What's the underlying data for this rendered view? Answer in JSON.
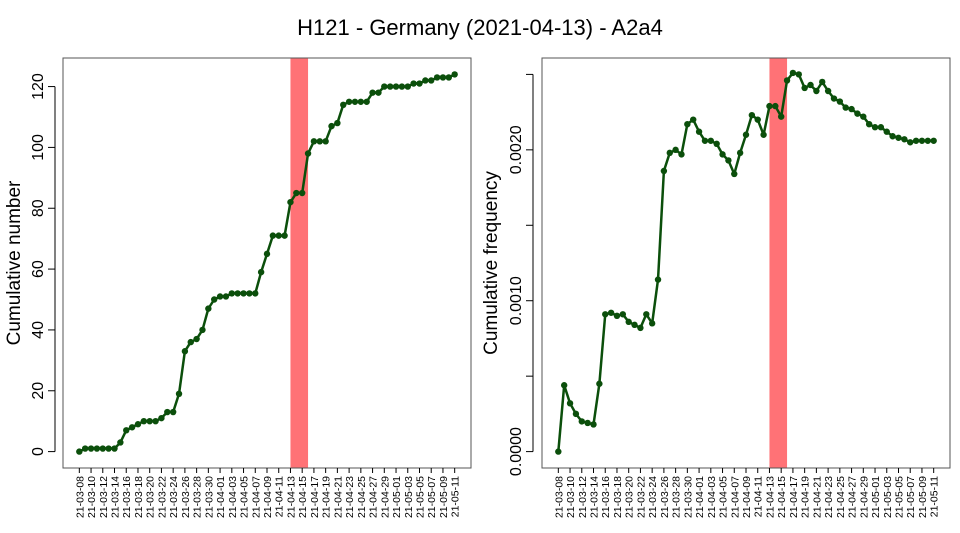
{
  "title": "H121 - Germany (2021-04-13) - A2a4",
  "colors": {
    "line": "#0b4f0b",
    "point": "#0b4f0b",
    "highlight": "#ff7276",
    "axis": "#000000"
  },
  "chart_data": [
    {
      "type": "line",
      "ylabel": "Cumulative number",
      "ylim": [
        0,
        124
      ],
      "yticks": [
        0,
        20,
        40,
        60,
        80,
        100,
        120
      ],
      "ytick_labels": [
        "0",
        "20",
        "40",
        "60",
        "80",
        "100",
        "120"
      ],
      "highlight": {
        "from": "21-04-13",
        "to": "21-04-16"
      },
      "x_tick_labels": [
        "21-03-08",
        "21-03-10",
        "21-03-12",
        "21-03-14",
        "21-03-16",
        "21-03-18",
        "21-03-20",
        "21-03-22",
        "21-03-24",
        "21-03-26",
        "21-03-28",
        "21-03-30",
        "21-04-01",
        "21-04-03",
        "21-04-05",
        "21-04-07",
        "21-04-09",
        "21-04-11",
        "21-04-13",
        "21-04-15",
        "21-04-17",
        "21-04-19",
        "21-04-21",
        "21-04-23",
        "21-04-25",
        "21-04-27",
        "21-04-29",
        "21-05-01",
        "21-05-03",
        "21-05-05",
        "21-05-07",
        "21-05-09",
        "21-05-11"
      ],
      "x": [
        "21-03-08",
        "21-03-09",
        "21-03-10",
        "21-03-11",
        "21-03-12",
        "21-03-13",
        "21-03-14",
        "21-03-15",
        "21-03-16",
        "21-03-17",
        "21-03-18",
        "21-03-19",
        "21-03-20",
        "21-03-21",
        "21-03-22",
        "21-03-23",
        "21-03-24",
        "21-03-25",
        "21-03-26",
        "21-03-27",
        "21-03-28",
        "21-03-29",
        "21-03-30",
        "21-03-31",
        "21-04-01",
        "21-04-02",
        "21-04-03",
        "21-04-04",
        "21-04-05",
        "21-04-06",
        "21-04-07",
        "21-04-08",
        "21-04-09",
        "21-04-10",
        "21-04-11",
        "21-04-12",
        "21-04-13",
        "21-04-14",
        "21-04-15",
        "21-04-16",
        "21-04-17",
        "21-04-18",
        "21-04-19",
        "21-04-20",
        "21-04-21",
        "21-04-22",
        "21-04-23",
        "21-04-24",
        "21-04-25",
        "21-04-26",
        "21-04-27",
        "21-04-28",
        "21-04-29",
        "21-04-30",
        "21-05-01",
        "21-05-02",
        "21-05-03",
        "21-05-04",
        "21-05-05",
        "21-05-06",
        "21-05-07",
        "21-05-08",
        "21-05-09",
        "21-05-10",
        "21-05-11"
      ],
      "series": [
        {
          "values": [
            0,
            1,
            1,
            1,
            1,
            1,
            1,
            3,
            7,
            8,
            9,
            10,
            10,
            10,
            11,
            13,
            13,
            19,
            33,
            36,
            37,
            40,
            47,
            50,
            51,
            51,
            52,
            52,
            52,
            52,
            52,
            59,
            65,
            71,
            71,
            71,
            82,
            85,
            85,
            98,
            102,
            102,
            102,
            107,
            108,
            114,
            115,
            115,
            115,
            115,
            118,
            118,
            120,
            120,
            120,
            120,
            120,
            121,
            121,
            122,
            122,
            123,
            123,
            123,
            124
          ]
        }
      ]
    },
    {
      "type": "line",
      "ylabel": "Cumulative frequency",
      "ylim": [
        0,
        0.0025
      ],
      "yticks": [
        0,
        0.0005,
        0.001,
        0.0015,
        0.002,
        0.0025
      ],
      "ytick_labels": [
        "0.0000",
        "",
        "0.0010",
        "",
        "0.0020",
        ""
      ],
      "highlight": {
        "from": "21-04-13",
        "to": "21-04-16"
      },
      "x_tick_labels": [
        "21-03-08",
        "21-03-10",
        "21-03-12",
        "21-03-14",
        "21-03-16",
        "21-03-18",
        "21-03-20",
        "21-03-22",
        "21-03-24",
        "21-03-26",
        "21-03-28",
        "21-03-30",
        "21-04-01",
        "21-04-03",
        "21-04-05",
        "21-04-07",
        "21-04-09",
        "21-04-11",
        "21-04-13",
        "21-04-15",
        "21-04-17",
        "21-04-19",
        "21-04-21",
        "21-04-23",
        "21-04-25",
        "21-04-27",
        "21-04-29",
        "21-05-01",
        "21-05-03",
        "21-05-05",
        "21-05-07",
        "21-05-09",
        "21-05-11"
      ],
      "x": [
        "21-03-08",
        "21-03-09",
        "21-03-10",
        "21-03-11",
        "21-03-12",
        "21-03-13",
        "21-03-14",
        "21-03-15",
        "21-03-16",
        "21-03-17",
        "21-03-18",
        "21-03-19",
        "21-03-20",
        "21-03-21",
        "21-03-22",
        "21-03-23",
        "21-03-24",
        "21-03-25",
        "21-03-26",
        "21-03-27",
        "21-03-28",
        "21-03-29",
        "21-03-30",
        "21-03-31",
        "21-04-01",
        "21-04-02",
        "21-04-03",
        "21-04-04",
        "21-04-05",
        "21-04-06",
        "21-04-07",
        "21-04-08",
        "21-04-09",
        "21-04-10",
        "21-04-11",
        "21-04-12",
        "21-04-13",
        "21-04-14",
        "21-04-15",
        "21-04-16",
        "21-04-17",
        "21-04-18",
        "21-04-19",
        "21-04-20",
        "21-04-21",
        "21-04-22",
        "21-04-23",
        "21-04-24",
        "21-04-25",
        "21-04-26",
        "21-04-27",
        "21-04-28",
        "21-04-29",
        "21-04-30",
        "21-05-01",
        "21-05-02",
        "21-05-03",
        "21-05-04",
        "21-05-05",
        "21-05-06",
        "21-05-07",
        "21-05-08",
        "21-05-09",
        "21-05-10",
        "21-05-11"
      ],
      "series": [
        {
          "values": [
            0,
            0.00044,
            0.00032,
            0.00025,
            0.0002,
            0.00019,
            0.00018,
            0.00045,
            0.00091,
            0.00092,
            0.0009,
            0.00091,
            0.00086,
            0.00084,
            0.00082,
            0.00091,
            0.00085,
            0.00114,
            0.00186,
            0.00198,
            0.002,
            0.00197,
            0.00217,
            0.0022,
            0.00212,
            0.00206,
            0.00206,
            0.00204,
            0.00197,
            0.00193,
            0.00184,
            0.00198,
            0.0021,
            0.00223,
            0.0022,
            0.0021,
            0.00229,
            0.00229,
            0.00222,
            0.00246,
            0.00251,
            0.0025,
            0.00241,
            0.00243,
            0.00239,
            0.00245,
            0.00239,
            0.00234,
            0.00232,
            0.00228,
            0.00227,
            0.00224,
            0.00222,
            0.00217,
            0.00215,
            0.00215,
            0.00212,
            0.00209,
            0.00208,
            0.00207,
            0.00205,
            0.00206,
            0.00206,
            0.00206,
            0.00206
          ]
        }
      ]
    }
  ]
}
